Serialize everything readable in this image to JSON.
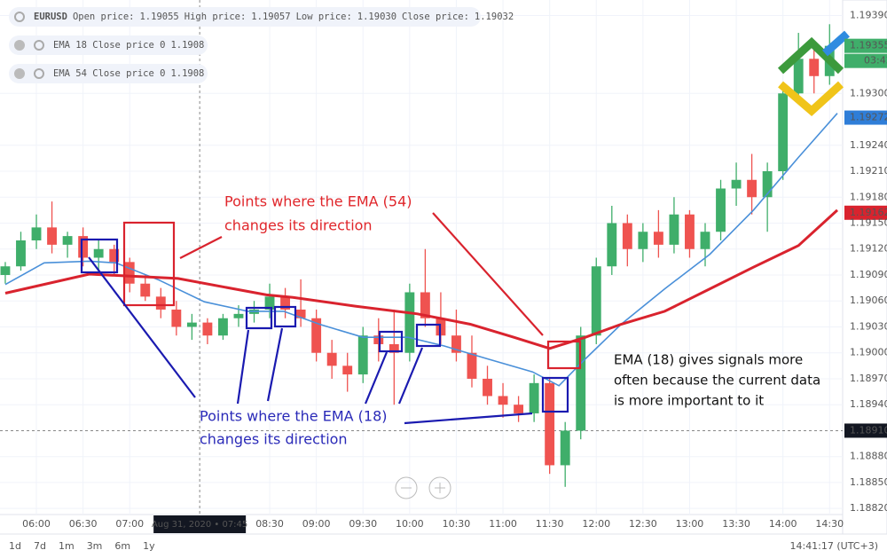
{
  "chart_data": {
    "type": "candlestick",
    "legend": {
      "symbol": "EURUSD",
      "open_label": "Open price:",
      "open": "1.19055",
      "high_label": "High price:",
      "high": "1.19057",
      "low_label": "Low price:",
      "low": "1.19030",
      "close_label": "Close price:",
      "close": "1.19032",
      "studies": [
        {
          "name": "EMA 18 Close price 0",
          "value": "1.1908",
          "color": "#2962ff"
        },
        {
          "name": "EMA 54 Close price 0",
          "value": "1.1908",
          "color": "#e53935"
        }
      ]
    },
    "up_color": "#3fae6a",
    "down_color": "#ef5350",
    "xlim": [
      336.6,
      878.4
    ],
    "ylim": [
      1.18813,
      1.19408
    ],
    "xticks": [
      {
        "value": 360,
        "label": "06:00"
      },
      {
        "value": 390,
        "label": "06:30"
      },
      {
        "value": 420,
        "label": "07:00"
      },
      {
        "value": 510,
        "label": "08:30"
      },
      {
        "value": 540,
        "label": "09:00"
      },
      {
        "value": 570,
        "label": "09:30"
      },
      {
        "value": 600,
        "label": "10:00"
      },
      {
        "value": 630,
        "label": "10:30"
      },
      {
        "value": 660,
        "label": "11:00"
      },
      {
        "value": 690,
        "label": "11:30"
      },
      {
        "value": 720,
        "label": "12:00"
      },
      {
        "value": 750,
        "label": "12:30"
      },
      {
        "value": 780,
        "label": "13:00"
      },
      {
        "value": 810,
        "label": "13:30"
      },
      {
        "value": 840,
        "label": "14:00"
      },
      {
        "value": 870,
        "label": "14:30"
      }
    ],
    "yticks": [
      {
        "value": 1.1939,
        "label": "1.19390"
      },
      {
        "value": 1.193,
        "label": "1.19300"
      },
      {
        "value": 1.1924,
        "label": "1.19240"
      },
      {
        "value": 1.1921,
        "label": "1.19210"
      },
      {
        "value": 1.1918,
        "label": "1.19180"
      },
      {
        "value": 1.1915,
        "label": "1.19150"
      },
      {
        "value": 1.1912,
        "label": "1.19120"
      },
      {
        "value": 1.1909,
        "label": "1.19090"
      },
      {
        "value": 1.1906,
        "label": "1.19060"
      },
      {
        "value": 1.1903,
        "label": "1.19030"
      },
      {
        "value": 1.19,
        "label": "1.19000"
      },
      {
        "value": 1.1897,
        "label": "1.18970"
      },
      {
        "value": 1.1894,
        "label": "1.18940"
      },
      {
        "value": 1.1888,
        "label": "1.18880"
      },
      {
        "value": 1.1885,
        "label": "1.18850"
      },
      {
        "value": 1.1882,
        "label": "1.18820"
      }
    ],
    "x": [
      340,
      350,
      360,
      370,
      380,
      390,
      400,
      410,
      420,
      430,
      440,
      450,
      460,
      470,
      480,
      490,
      500,
      510,
      520,
      530,
      540,
      550,
      560,
      570,
      580,
      590,
      600,
      610,
      620,
      630,
      640,
      650,
      660,
      670,
      680,
      690,
      700,
      710,
      720,
      730,
      740,
      750,
      760,
      770,
      780,
      790,
      800,
      810,
      820,
      830,
      840,
      850,
      860,
      870
    ],
    "ohlc": [
      [
        1.1909,
        1.19105,
        1.1908,
        1.191
      ],
      [
        1.191,
        1.1914,
        1.19095,
        1.1913
      ],
      [
        1.1913,
        1.1916,
        1.1912,
        1.19145
      ],
      [
        1.19145,
        1.19175,
        1.19115,
        1.19125
      ],
      [
        1.19125,
        1.1914,
        1.1911,
        1.19135
      ],
      [
        1.19135,
        1.19145,
        1.191,
        1.1911
      ],
      [
        1.1911,
        1.1913,
        1.19095,
        1.1912
      ],
      [
        1.1912,
        1.19125,
        1.1909,
        1.19105
      ],
      [
        1.19105,
        1.1911,
        1.1907,
        1.1908
      ],
      [
        1.1908,
        1.1909,
        1.1906,
        1.19065
      ],
      [
        1.19065,
        1.19075,
        1.1904,
        1.1905
      ],
      [
        1.1905,
        1.1906,
        1.1902,
        1.1903
      ],
      [
        1.1903,
        1.19045,
        1.19015,
        1.19035
      ],
      [
        1.19035,
        1.1904,
        1.1901,
        1.1902
      ],
      [
        1.1902,
        1.19045,
        1.19015,
        1.1904
      ],
      [
        1.1904,
        1.19055,
        1.1903,
        1.19045
      ],
      [
        1.19045,
        1.1906,
        1.19035,
        1.1905
      ],
      [
        1.1905,
        1.1908,
        1.1904,
        1.19065
      ],
      [
        1.19065,
        1.19075,
        1.1904,
        1.1905
      ],
      [
        1.1905,
        1.19085,
        1.1903,
        1.1904
      ],
      [
        1.1904,
        1.1905,
        1.1899,
        1.19
      ],
      [
        1.19,
        1.19015,
        1.1897,
        1.18985
      ],
      [
        1.18985,
        1.19,
        1.18955,
        1.18975
      ],
      [
        1.18975,
        1.1903,
        1.18965,
        1.1902
      ],
      [
        1.1902,
        1.1904,
        1.1899,
        1.1901
      ],
      [
        1.1901,
        1.1905,
        1.1894,
        1.19
      ],
      [
        1.19,
        1.1908,
        1.1899,
        1.1907
      ],
      [
        1.1907,
        1.1912,
        1.1903,
        1.1904
      ],
      [
        1.1904,
        1.1907,
        1.1901,
        1.1902
      ],
      [
        1.1902,
        1.1905,
        1.1899,
        1.19
      ],
      [
        1.19,
        1.1902,
        1.1896,
        1.1897
      ],
      [
        1.1897,
        1.18985,
        1.1894,
        1.1895
      ],
      [
        1.1895,
        1.18965,
        1.18925,
        1.1894
      ],
      [
        1.1894,
        1.1895,
        1.1892,
        1.1893
      ],
      [
        1.1893,
        1.18975,
        1.1892,
        1.18965
      ],
      [
        1.18965,
        1.1897,
        1.1886,
        1.1887
      ],
      [
        1.1887,
        1.1892,
        1.18845,
        1.1891
      ],
      [
        1.1891,
        1.1903,
        1.189,
        1.1902
      ],
      [
        1.1902,
        1.1911,
        1.1901,
        1.191
      ],
      [
        1.191,
        1.1917,
        1.1909,
        1.1915
      ],
      [
        1.1915,
        1.1916,
        1.191,
        1.1912
      ],
      [
        1.1912,
        1.1915,
        1.19105,
        1.1914
      ],
      [
        1.1914,
        1.19165,
        1.1911,
        1.19125
      ],
      [
        1.19125,
        1.1918,
        1.19115,
        1.1916
      ],
      [
        1.1916,
        1.19165,
        1.1911,
        1.1912
      ],
      [
        1.1912,
        1.1915,
        1.191,
        1.1914
      ],
      [
        1.1914,
        1.192,
        1.1913,
        1.1919
      ],
      [
        1.1919,
        1.1922,
        1.1917,
        1.192
      ],
      [
        1.192,
        1.1923,
        1.1916,
        1.1918
      ],
      [
        1.1918,
        1.1922,
        1.1914,
        1.1921
      ],
      [
        1.1921,
        1.1931,
        1.192,
        1.193
      ],
      [
        1.193,
        1.1937,
        1.1929,
        1.1934
      ],
      [
        1.1934,
        1.1936,
        1.193,
        1.1932
      ],
      [
        1.1932,
        1.1938,
        1.1931,
        1.19355
      ]
    ],
    "lines": [
      {
        "color": "#4a90d9",
        "x": [
          340,
          365,
          394,
          411,
          439,
          468,
          496,
          519,
          542,
          570,
          599,
          622,
          650,
          679,
          696,
          713,
          736,
          764,
          793,
          821,
          850,
          875
        ],
        "values": [
          1.19079,
          1.19104,
          1.19106,
          1.19104,
          1.19084,
          1.19059,
          1.19048,
          1.19048,
          1.19033,
          1.19018,
          1.19018,
          1.19008,
          1.18993,
          1.18978,
          1.18962,
          1.18993,
          1.19033,
          1.19074,
          1.19114,
          1.19165,
          1.19226,
          1.19277
        ]
      },
      {
        "color": "#d9232e",
        "x": [
          340,
          394,
          451,
          508,
          525,
          565,
          605,
          639,
          667,
          690,
          713,
          736,
          764,
          793,
          821,
          850,
          875
        ],
        "values": [
          1.19069,
          1.19091,
          1.19086,
          1.19067,
          1.19064,
          1.19054,
          1.19045,
          1.19033,
          1.19018,
          1.19005,
          1.19018,
          1.19033,
          1.19048,
          1.19074,
          1.19099,
          1.19124,
          1.19165
        ]
      }
    ],
    "price_badges": [
      {
        "value": 1.19355,
        "label": "1.19355",
        "color": "#3fae6a"
      },
      {
        "value": 1.19272,
        "label": "1.19272",
        "color": "#2f7ed8"
      },
      {
        "value": 1.19162,
        "label": "1.19162",
        "color": "#d9232e"
      }
    ],
    "countdown": "03:42",
    "crosshair": {
      "x": 465,
      "y": 1.1891,
      "x_label": "Aug 31, 2020 • 07:45",
      "y_label": "1.18910"
    },
    "annotations": [
      {
        "lines": [
          "Points where the EMA (54)",
          "changes its direction"
        ],
        "color": "#e0262b"
      },
      {
        "lines": [
          "Points where the EMA (18)",
          "changes its direction"
        ],
        "color": "#2a2ab8"
      },
      {
        "lines": [
          "EMA (18) gives signals more",
          "often because the current data",
          "is more important to it"
        ],
        "color": "#111111"
      }
    ],
    "ranges": [
      "1d",
      "7d",
      "1m",
      "3m",
      "6m",
      "1y"
    ],
    "clock": "14:41:17 (UTC+3)"
  }
}
